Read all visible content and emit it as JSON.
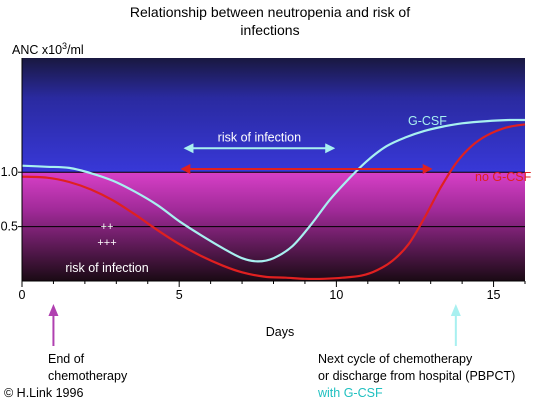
{
  "chart_data": {
    "type": "line",
    "title_line1": "Relationship between neutropenia and risk of",
    "title_line2": "infections",
    "ylabel": "ANC x10",
    "ylabel_sup": "3",
    "ylabel_suffix": "/ml",
    "xlabel": "Days",
    "xlim": [
      0,
      16
    ],
    "ylim": [
      0,
      2.05
    ],
    "x_ticks": [
      "0",
      "5",
      "10",
      "15"
    ],
    "y_ticks": [
      {
        "label": "0.5",
        "value": 0.5
      },
      {
        "label": "1.0",
        "value": 1.0
      }
    ],
    "grid": false,
    "series": [
      {
        "name": "G-CSF",
        "color": "#a8f0f0",
        "x": [
          0,
          0.8,
          1.5,
          2.2,
          2.9,
          3.6,
          4.3,
          5.0,
          5.7,
          6.4,
          7.0,
          7.5,
          8.0,
          8.6,
          9.2,
          9.8,
          10.4,
          11.0,
          11.6,
          12.2,
          12.8,
          13.4,
          14.0,
          14.8,
          15.5,
          16.0
        ],
        "y": [
          1.06,
          1.05,
          1.04,
          0.99,
          0.92,
          0.82,
          0.7,
          0.55,
          0.42,
          0.3,
          0.21,
          0.18,
          0.21,
          0.32,
          0.52,
          0.75,
          0.94,
          1.11,
          1.24,
          1.32,
          1.38,
          1.42,
          1.45,
          1.47,
          1.48,
          1.48
        ]
      },
      {
        "name": "no G-CSF",
        "color": "#e02020",
        "x": [
          0,
          0.8,
          1.5,
          2.2,
          2.9,
          3.6,
          4.3,
          5.0,
          5.7,
          6.4,
          7.0,
          7.7,
          8.4,
          9.0,
          9.6,
          10.2,
          10.8,
          11.3,
          11.8,
          12.3,
          12.8,
          13.3,
          13.8,
          14.3,
          14.8,
          15.4,
          16.0
        ],
        "y": [
          0.96,
          0.95,
          0.91,
          0.84,
          0.74,
          0.61,
          0.47,
          0.34,
          0.23,
          0.14,
          0.08,
          0.04,
          0.03,
          0.02,
          0.02,
          0.03,
          0.05,
          0.1,
          0.19,
          0.34,
          0.58,
          0.85,
          1.08,
          1.24,
          1.34,
          1.41,
          1.44
        ]
      }
    ],
    "annotations": {
      "gcsf_label": "G-CSF",
      "nogcsf_label": "no G-CSF",
      "risk_gcsf": {
        "text": "risk of infection",
        "x_start": 5.2,
        "x_end": 9.9,
        "y": 1.22
      },
      "risk_nogcsf": {
        "x_start": 5.1,
        "x_end": 13.0,
        "y": 1.03
      },
      "plus2": "++",
      "plus3": "+++",
      "risk_bottom": "risk of infection",
      "end_chemo": {
        "day": 1.0,
        "line1": "End of",
        "line2": "chemotherapy",
        "color": "#b040b0"
      },
      "next_cycle": {
        "day": 13.8,
        "line1": "Next cycle of chemotherapy",
        "line2": "or discharge from hospital (PBPCT)",
        "line3": "with G-CSF",
        "color": "#a8f0f0",
        "line3_color": "#20c0c0"
      }
    },
    "copyright": "© H.Link 1996"
  }
}
